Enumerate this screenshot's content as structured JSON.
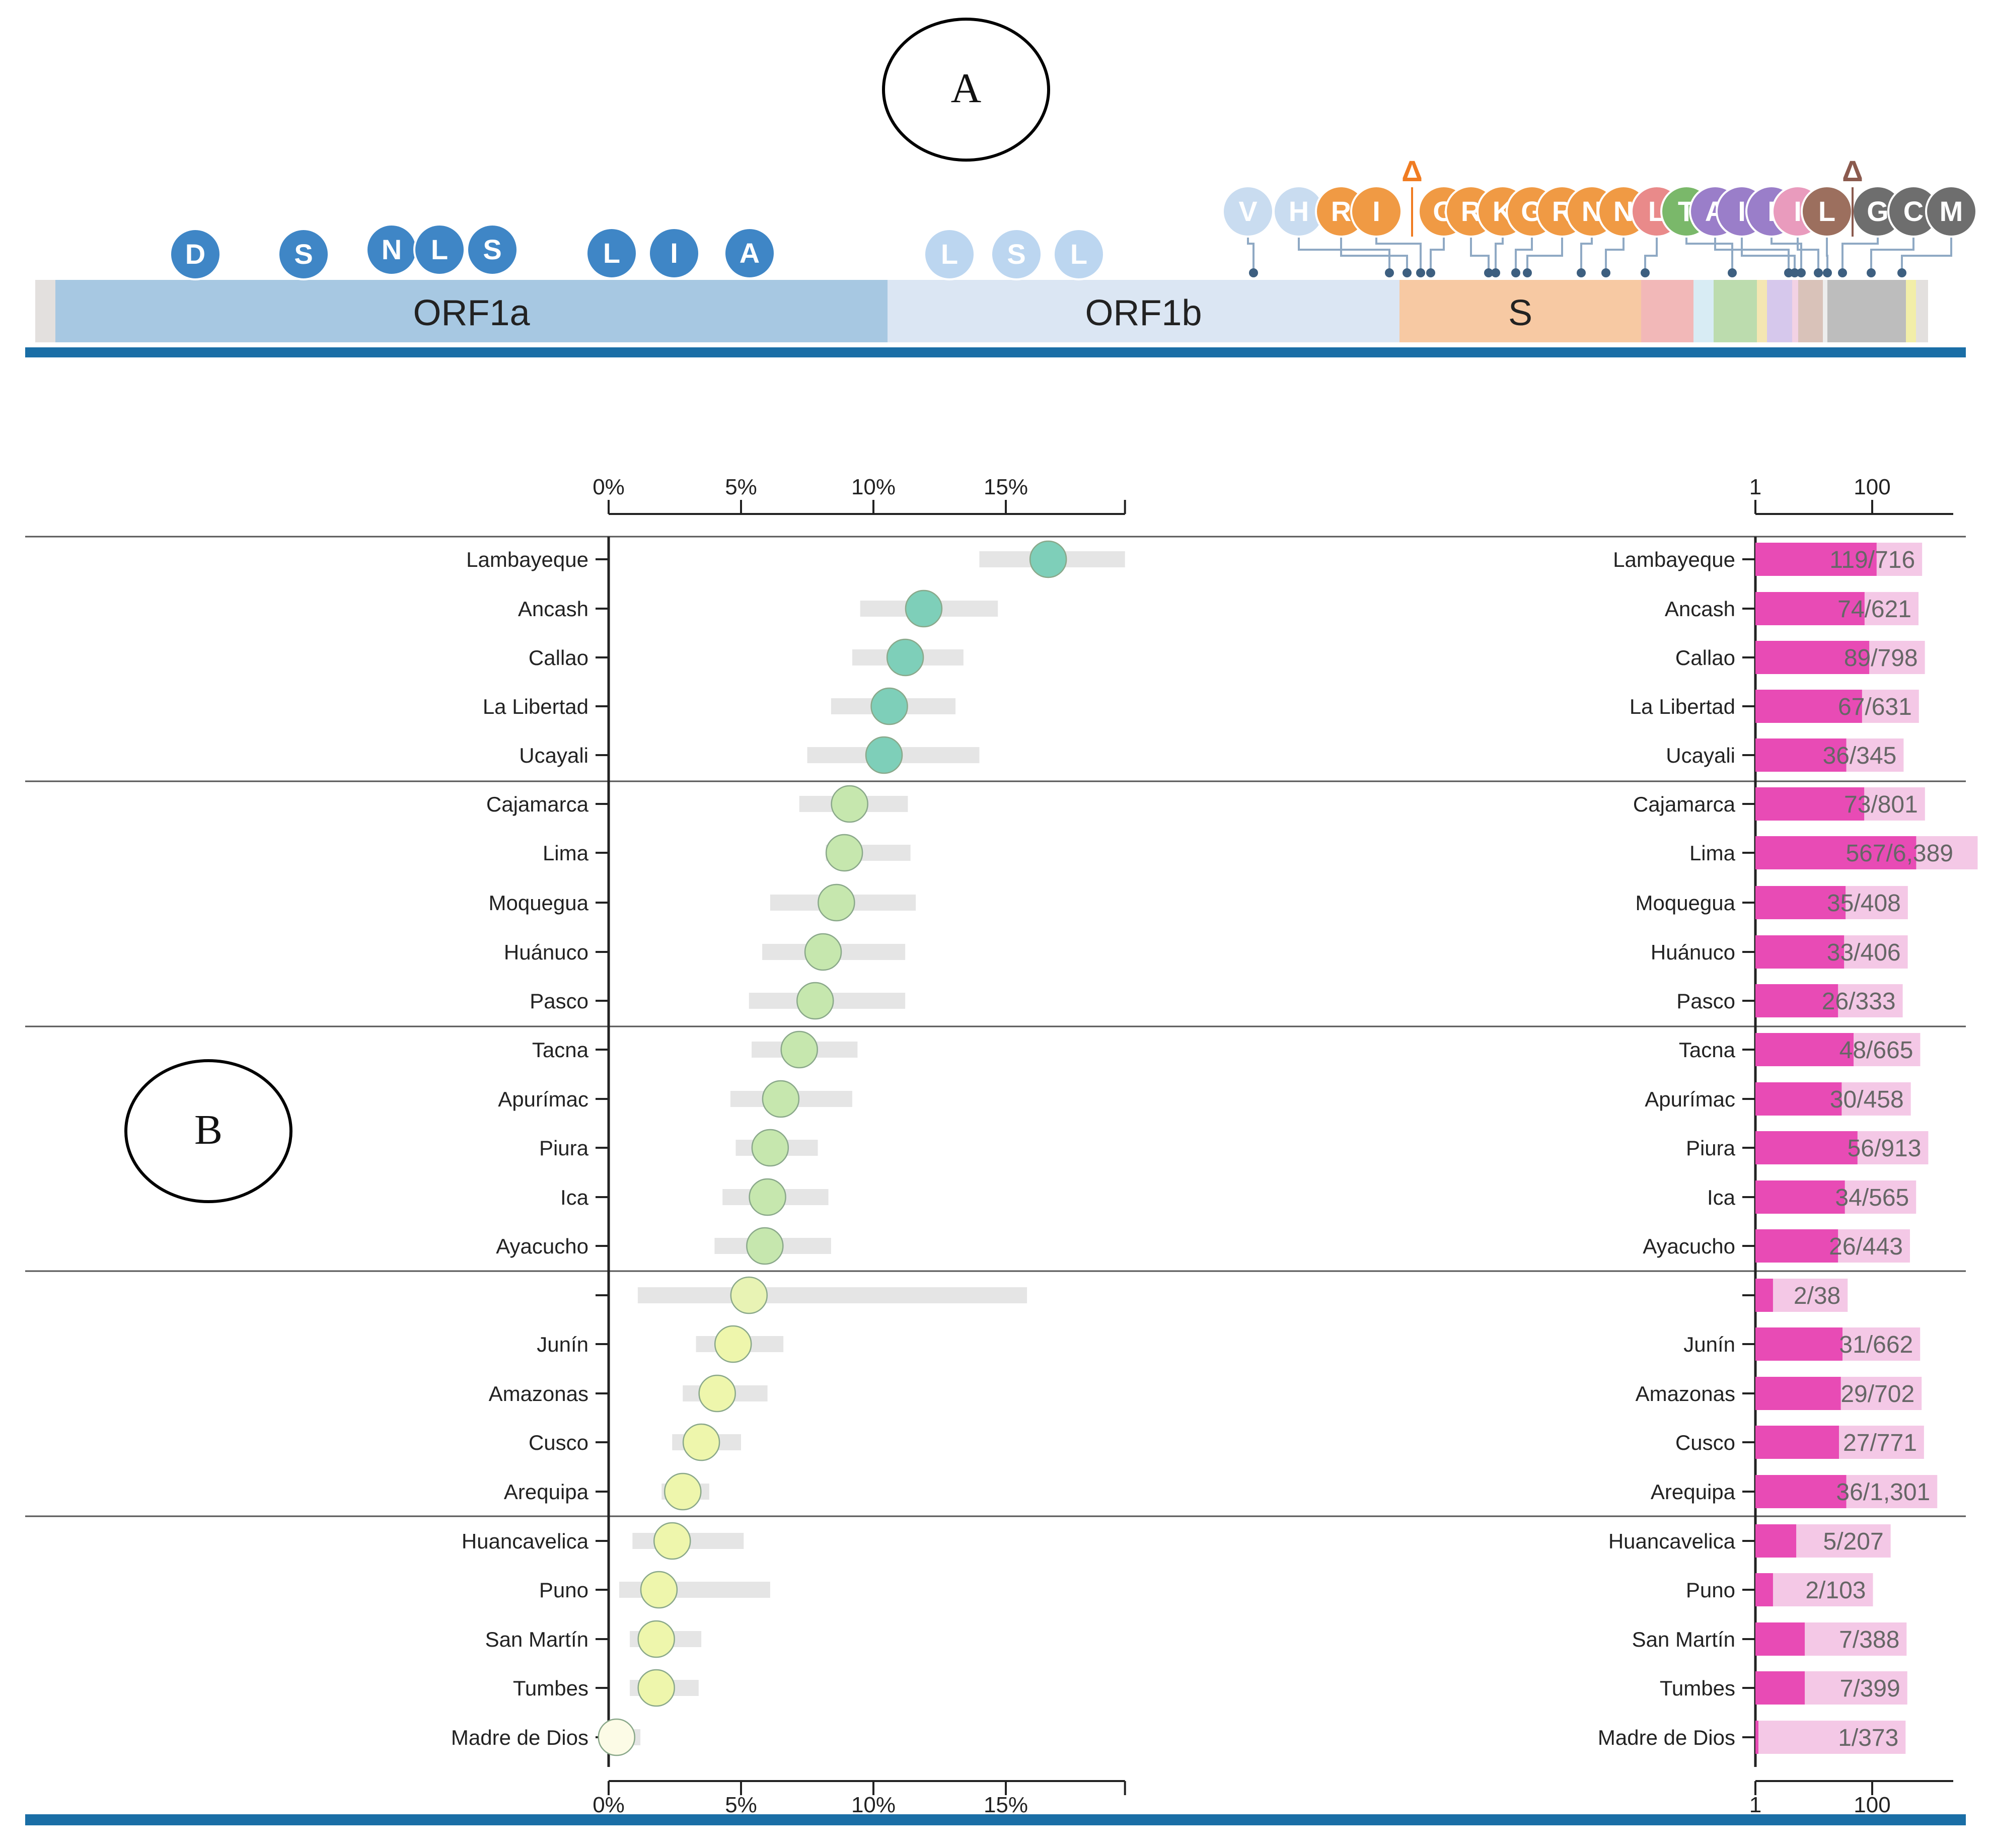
{
  "panel_labels": {
    "a": "A",
    "b": "B"
  },
  "genome": {
    "genes": [
      {
        "name": "",
        "color": "#e3e0de"
      },
      {
        "name": "ORF1a",
        "color": "#a7c8e2"
      },
      {
        "name": "ORF1b",
        "color": "#dbe6f3"
      },
      {
        "name": "S",
        "color": "#f7c9a3"
      },
      {
        "name": "",
        "color": "#f2b8b8"
      },
      {
        "name": "",
        "color": "#d8ecf4"
      },
      {
        "name": "",
        "color": "#bcdcae"
      },
      {
        "name": "",
        "color": "#f4e6b2"
      },
      {
        "name": "",
        "color": "#d6c8ec"
      },
      {
        "name": "",
        "color": "#f2d2e4"
      },
      {
        "name": "",
        "color": "#d9c2b9"
      },
      {
        "name": "",
        "color": "#ededed"
      },
      {
        "name": "",
        "color": "#bdbdbd"
      },
      {
        "name": "",
        "color": "#f2eea8"
      },
      {
        "name": "",
        "color": "#e3e0de"
      }
    ],
    "orf1a_mutations": [
      "D",
      "S",
      "N",
      "L",
      "S",
      "L",
      "I",
      "A"
    ],
    "orf1b_mutations": [
      "L",
      "S",
      "L"
    ],
    "spike_mutations": [
      "V",
      "H",
      "R",
      "I",
      "G",
      "R",
      "K",
      "G",
      "R",
      "N",
      "N",
      "L",
      "T",
      "A",
      "I",
      "I",
      "I",
      "L",
      "G",
      "C",
      "M"
    ],
    "deletion_marker": "Δ"
  },
  "chart_data": [
    {
      "type": "scatter",
      "title": "",
      "xlabel": "",
      "ylabel": "",
      "xlim": [
        0,
        19.5
      ],
      "xticks": [
        "0%",
        "5%",
        "10%",
        "15%"
      ],
      "tick_values": [
        0,
        5,
        10,
        15
      ],
      "categories": [
        "Lambayeque",
        "Ancash",
        "Callao",
        "La Libertad",
        "Ucayali",
        "Cajamarca",
        "Lima",
        "Moquegua",
        "Huánuco",
        "Pasco",
        "Tacna",
        "Apurímac",
        "Piura",
        "Ica",
        "Ayacucho",
        "",
        "Junín",
        "Amazonas",
        "Cusco",
        "Arequipa",
        "Huancavelica",
        "Puno",
        "San Martín",
        "Tumbes",
        "Madre de Dios"
      ],
      "values": [
        16.6,
        11.9,
        11.2,
        10.6,
        10.4,
        9.1,
        8.9,
        8.6,
        8.1,
        7.8,
        7.2,
        6.5,
        6.1,
        6.0,
        5.9,
        5.3,
        4.7,
        4.1,
        3.5,
        2.8,
        2.4,
        1.9,
        1.8,
        1.8,
        0.3
      ],
      "ci_low": [
        14.0,
        9.5,
        9.2,
        8.4,
        7.5,
        7.2,
        8.2,
        6.1,
        5.8,
        5.3,
        5.4,
        4.6,
        4.8,
        4.3,
        4.0,
        1.1,
        3.3,
        2.8,
        2.4,
        2.0,
        0.9,
        0.4,
        0.8,
        0.8,
        0.0
      ],
      "ci_high": [
        19.5,
        14.7,
        13.4,
        13.1,
        14.0,
        11.3,
        11.4,
        11.6,
        11.2,
        11.2,
        9.4,
        9.2,
        7.9,
        8.3,
        8.4,
        15.8,
        6.6,
        6.0,
        5.0,
        3.8,
        5.1,
        6.1,
        3.5,
        3.4,
        1.2
      ],
      "colors": [
        "#7ecfb9",
        "#7ecfb9",
        "#7ecfb9",
        "#7ecfb9",
        "#7ecfb9",
        "#c6e7ae",
        "#c6e7ae",
        "#c6e7ae",
        "#c6e7ae",
        "#c6e7ae",
        "#c6e7ae",
        "#c6e7ae",
        "#c6e7ae",
        "#c6e7ae",
        "#c6e7ae",
        "#e8f3b4",
        "#eef6ac",
        "#eef6ac",
        "#eef6ac",
        "#eef6ac",
        "#eef6ac",
        "#eef6ac",
        "#eef6ac",
        "#eef6ac",
        "#fcfbe6"
      ]
    },
    {
      "type": "bar",
      "title": "",
      "xlabel": "",
      "ylabel": "",
      "scale": "log",
      "xticks": [
        "1",
        "100"
      ],
      "categories": [
        "Lambayeque",
        "Ancash",
        "Callao",
        "La Libertad",
        "Ucayali",
        "Cajamarca",
        "Lima",
        "Moquegua",
        "Huánuco",
        "Pasco",
        "Tacna",
        "Apurímac",
        "Piura",
        "Ica",
        "Ayacucho",
        "",
        "Junín",
        "Amazonas",
        "Cusco",
        "Arequipa",
        "Huancavelica",
        "Puno",
        "San Martín",
        "Tumbes",
        "Madre de Dios"
      ],
      "counts": [
        119,
        74,
        89,
        67,
        36,
        73,
        567,
        35,
        33,
        26,
        48,
        30,
        56,
        34,
        26,
        2,
        31,
        29,
        27,
        36,
        5,
        2,
        7,
        7,
        1
      ],
      "totals": [
        716,
        621,
        798,
        631,
        345,
        801,
        6389,
        408,
        406,
        333,
        665,
        458,
        913,
        565,
        443,
        38,
        662,
        702,
        771,
        1301,
        207,
        103,
        388,
        399,
        373
      ],
      "labels": [
        "119/716",
        "74/621",
        "89/798",
        "67/631",
        "36/345",
        "73/801",
        "567/6,389",
        "35/408",
        "33/406",
        "26/333",
        "48/665",
        "30/458",
        "56/913",
        "34/565",
        "26/443",
        "2/38",
        "31/662",
        "29/702",
        "27/771",
        "36/1,301",
        "5/207",
        "2/103",
        "7/388",
        "7/399",
        "1/373"
      ]
    }
  ]
}
